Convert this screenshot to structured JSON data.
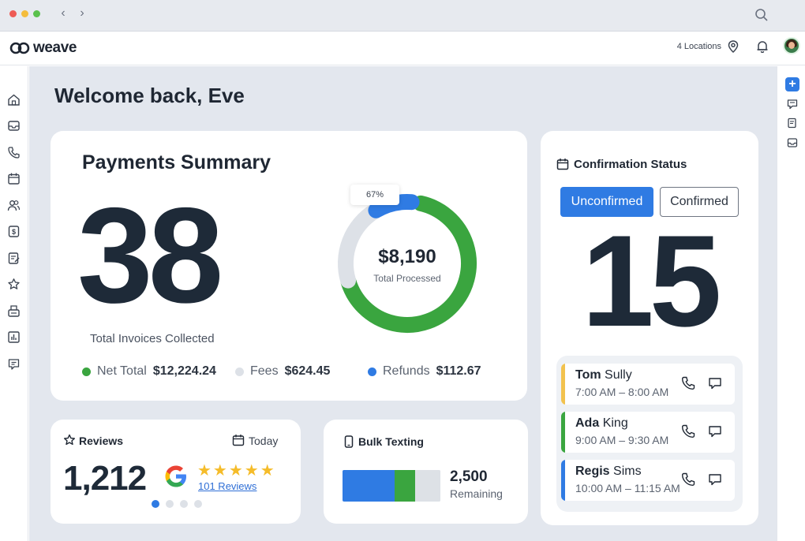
{
  "header": {
    "logo_text": "weave",
    "locations": "4 Locations"
  },
  "welcome": "Welcome back, Eve",
  "payments": {
    "title": "Payments Summary",
    "invoices_count": "38",
    "invoices_label": "Total Invoices Collected",
    "percent_badge": "67%",
    "total_amount": "$8,190",
    "total_label": "Total Processed",
    "donut_segments": [
      {
        "name": "Net Total",
        "fraction": 0.67,
        "color": "#3aa53f"
      },
      {
        "name": "Fees",
        "fraction": 0.21,
        "color": "#dde1e7"
      },
      {
        "name": "Refunds",
        "fraction": 0.1,
        "color": "#2f7be3"
      }
    ],
    "legend": [
      {
        "label": "Net Total",
        "value": "$12,224.24",
        "color": "#3aa53f"
      },
      {
        "label": "Fees",
        "value": "$624.45",
        "color": "#dde1e7"
      },
      {
        "label": "Refunds",
        "value": "$112.67",
        "color": "#2f7be3"
      }
    ]
  },
  "confirmation": {
    "title": "Confirmation Status",
    "tab_unconfirmed": "Unconfirmed",
    "tab_confirmed": "Confirmed",
    "count": "15",
    "appointments": [
      {
        "first": "Tom",
        "last": "Sully",
        "time": "7:00 AM – 8:00 AM",
        "color": "#f2c24e"
      },
      {
        "first": "Ada",
        "last": "King",
        "time": "9:00 AM – 9:30 AM",
        "color": "#3aa53f"
      },
      {
        "first": "Regis",
        "last": "Sims",
        "time": "10:00 AM – 11:15 AM",
        "color": "#2f7be3"
      }
    ]
  },
  "reviews": {
    "title": "Reviews",
    "period": "Today",
    "count": "1,212",
    "stars": "★★★★★",
    "link": "101 Reviews",
    "pager_total": 4,
    "pager_active": 0
  },
  "bulk": {
    "title": "Bulk Texting",
    "remaining_count": "2,500",
    "remaining_label": "Remaining",
    "usage_segments": [
      {
        "fraction": 0.53,
        "color": "#2f7be3"
      },
      {
        "fraction": 0.21,
        "color": "#3aa53f"
      },
      {
        "fraction": 0.26,
        "color": "#dde1e6"
      }
    ]
  },
  "colors": {
    "accent": "#2f7be3",
    "green": "#3aa53f",
    "canvas": "#e3e7ee"
  },
  "icons": {
    "left_nav": [
      "home-icon",
      "inbox-icon",
      "phone-icon",
      "calendar-icon",
      "contacts-icon",
      "payments-icon",
      "forms-icon",
      "reviews-icon",
      "fax-icon",
      "analytics-icon",
      "help-icon"
    ],
    "right_nav": [
      "add-icon",
      "messages-icon",
      "notes-icon",
      "inbox-tray-icon"
    ]
  }
}
